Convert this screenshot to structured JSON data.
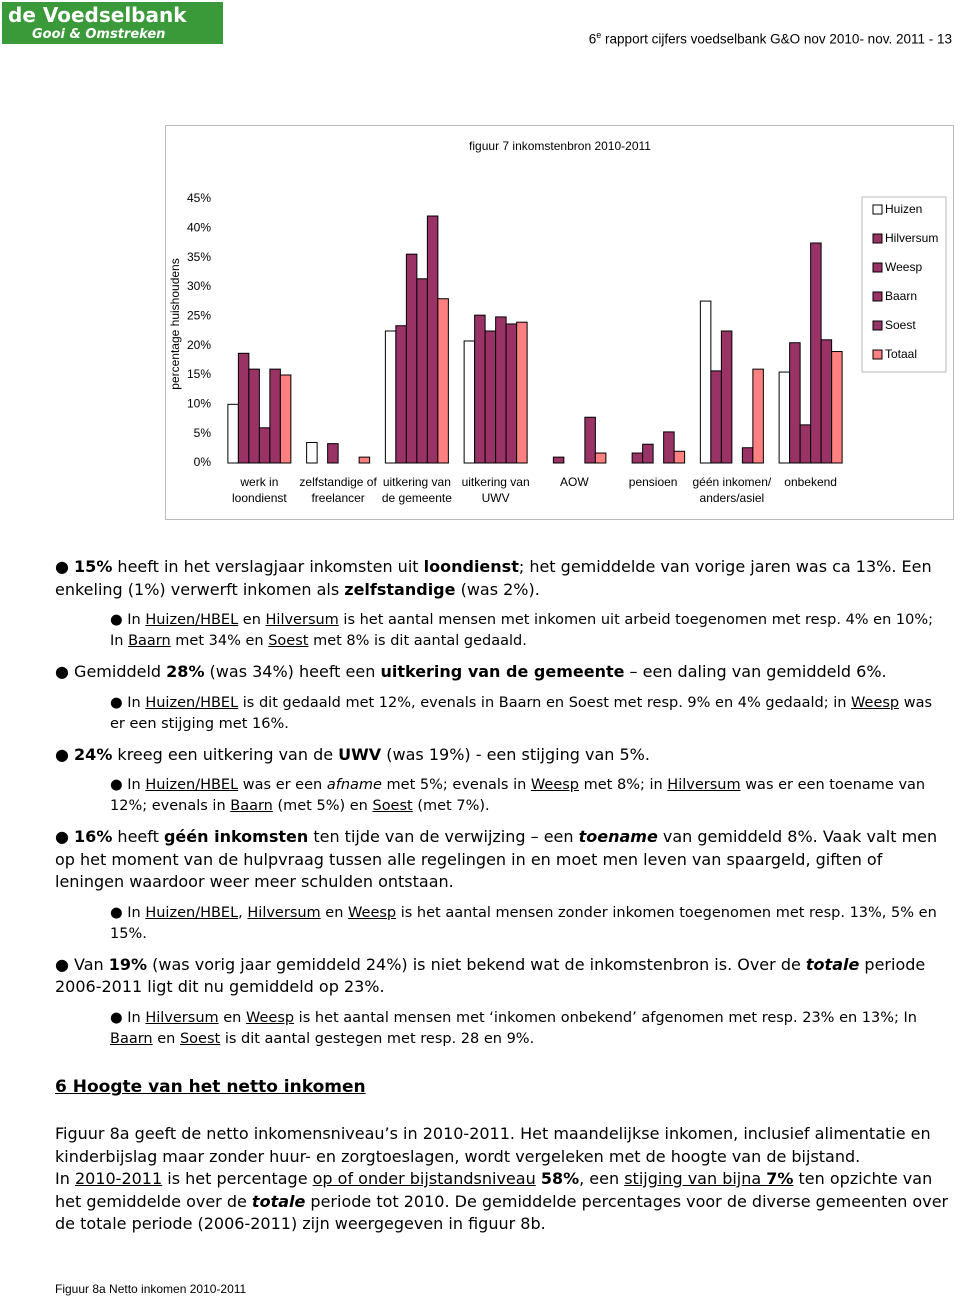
{
  "header": {
    "logo_title": "de Voedselbank",
    "logo_subtitle": "Gooi & Omstreken",
    "runs": [
      {
        "text": "6"
      },
      {
        "text": "e",
        "style": "sup"
      },
      {
        "text": " rapport cijfers voedselbank G&O nov 2010- nov. 2011 - 13"
      }
    ]
  },
  "chart_data": {
    "type": "bar",
    "title": "figuur 7  inkomstenbron 2010-2011",
    "y_label": "percentage huishoudens",
    "categories": [
      "werk in loondienst",
      "zelfstandige of freelancer",
      "uitkering van de gemeente",
      "uitkering van UWV",
      "AOW",
      "pensioen",
      "géén inkomen/ anders/asiel",
      "onbekend"
    ],
    "series": [
      {
        "name": "Huizen",
        "color": "#ffffff",
        "values": [
          10,
          3.5,
          22.5,
          20.8,
          0,
          0,
          27.6,
          15.5
        ]
      },
      {
        "name": "Hilversum",
        "color": "#993366",
        "values": [
          18.7,
          0,
          23.4,
          25.2,
          1,
          1.7,
          15.7,
          20.5
        ]
      },
      {
        "name": "Weesp",
        "color": "#993366",
        "values": [
          16,
          3.3,
          35.6,
          22.5,
          0,
          3.2,
          22.5,
          6.5
        ]
      },
      {
        "name": "Baarn",
        "color": "#993366",
        "values": [
          6,
          0,
          31.4,
          24.9,
          0,
          0,
          0,
          37.5
        ]
      },
      {
        "name": "Soest",
        "color": "#993366",
        "values": [
          16,
          0,
          42.1,
          23.7,
          7.8,
          5.3,
          2.6,
          21
        ]
      },
      {
        "name": "Totaal",
        "color": "#ff8080",
        "values": [
          15,
          1,
          28,
          24,
          1.7,
          2,
          16,
          19
        ]
      }
    ],
    "ylim": [
      0,
      45
    ],
    "yticks": [
      {
        "value": 0,
        "label": "0%"
      },
      {
        "value": 5,
        "label": "5%"
      },
      {
        "value": 10,
        "label": "10%"
      },
      {
        "value": 15,
        "label": "15%"
      },
      {
        "value": 20,
        "label": "20%"
      },
      {
        "value": 25,
        "label": "25%"
      },
      {
        "value": 30,
        "label": "30%"
      },
      {
        "value": 35,
        "label": "35%"
      },
      {
        "value": 40,
        "label": "40%"
      },
      {
        "value": 45,
        "label": "45%"
      }
    ],
    "grid": false,
    "legend": "right"
  },
  "paragraphs": [
    {
      "kind": "main",
      "runs": [
        {
          "text": "● "
        },
        {
          "text": "15%",
          "style": "b"
        },
        {
          "text": " heeft in het verslagjaar inkomsten uit "
        },
        {
          "text": "loondienst",
          "style": "b"
        },
        {
          "text": "; het gemiddelde van vorige jaren was ca 13%. Een enkeling (1%) verwerft inkomen als "
        },
        {
          "text": "zelfstandige",
          "style": "b"
        },
        {
          "text": " (was 2%)."
        }
      ]
    },
    {
      "kind": "sub",
      "runs": [
        {
          "text": "● In "
        },
        {
          "text": "Huizen/HBEL",
          "style": "u"
        },
        {
          "text": " en "
        },
        {
          "text": "Hilversum",
          "style": "u"
        },
        {
          "text": " is het aantal mensen met inkomen uit arbeid toegenomen met resp. 4% en 10%; In "
        },
        {
          "text": "Baarn",
          "style": "u"
        },
        {
          "text": " met 34% en "
        },
        {
          "text": "Soest",
          "style": "u"
        },
        {
          "text": " met 8% is dit aantal gedaald."
        }
      ]
    },
    {
      "kind": "main",
      "runs": [
        {
          "text": "● Gemiddeld "
        },
        {
          "text": "28%",
          "style": "b"
        },
        {
          "text": " (was 34%) heeft een "
        },
        {
          "text": "uitkering van de gemeente",
          "style": "b"
        },
        {
          "text": " – een daling van gemiddeld 6%."
        }
      ]
    },
    {
      "kind": "sub",
      "runs": [
        {
          "text": "● In "
        },
        {
          "text": "Huizen/HBEL",
          "style": "u"
        },
        {
          "text": " is dit gedaald met 12%, evenals in Baarn en Soest met resp. 9% en 4% gedaald; in "
        },
        {
          "text": "Weesp",
          "style": "u"
        },
        {
          "text": " was er een stijging met 16%."
        }
      ]
    },
    {
      "kind": "main",
      "runs": [
        {
          "text": "● "
        },
        {
          "text": "24%",
          "style": "b"
        },
        {
          "text": " kreeg een uitkering van de "
        },
        {
          "text": "UWV",
          "style": "b"
        },
        {
          "text": " (was 19%) - een stijging van 5%."
        }
      ]
    },
    {
      "kind": "sub",
      "runs": [
        {
          "text": "● In "
        },
        {
          "text": "Huizen/HBEL",
          "style": "u"
        },
        {
          "text": " was er een "
        },
        {
          "text": "afname",
          "style": "i"
        },
        {
          "text": " met 5%; evenals in "
        },
        {
          "text": "Weesp",
          "style": "u"
        },
        {
          "text": " met 8%; in "
        },
        {
          "text": "Hilversum",
          "style": "u"
        },
        {
          "text": " was er een toename van 12%; evenals in "
        },
        {
          "text": "Baarn",
          "style": "u"
        },
        {
          "text": " (met 5%) en "
        },
        {
          "text": "Soest",
          "style": "u"
        },
        {
          "text": " (met 7%)."
        }
      ]
    },
    {
      "kind": "main",
      "runs": [
        {
          "text": "● "
        },
        {
          "text": "16%",
          "style": "b"
        },
        {
          "text": " heeft "
        },
        {
          "text": "géén inkomsten",
          "style": "b"
        },
        {
          "text": " ten tijde van de verwijzing – een "
        },
        {
          "text": "toename",
          "style": "bi"
        },
        {
          "text": " van gemiddeld 8%. Vaak valt men op het moment van de hulpvraag tussen alle regelingen in en moet men leven van spaargeld, giften of leningen waardoor weer meer schulden ontstaan."
        }
      ]
    },
    {
      "kind": "sub",
      "runs": [
        {
          "text": "● In "
        },
        {
          "text": "Huizen/HBEL",
          "style": "u"
        },
        {
          "text": ", "
        },
        {
          "text": "Hilversum",
          "style": "u"
        },
        {
          "text": " en "
        },
        {
          "text": "Weesp",
          "style": "u"
        },
        {
          "text": " is het aantal mensen zonder inkomen toegenomen met resp. 13%, 5% en 15%."
        }
      ]
    },
    {
      "kind": "main",
      "runs": [
        {
          "text": "● Van "
        },
        {
          "text": "19%",
          "style": "b"
        },
        {
          "text": " (was vorig jaar gemiddeld 24%) is niet bekend wat de inkomstenbron is. Over de "
        },
        {
          "text": "totale",
          "style": "bi"
        },
        {
          "text": " periode 2006-2011 ligt dit nu gemiddeld op 23%."
        }
      ]
    },
    {
      "kind": "sub",
      "runs": [
        {
          "text": "● In "
        },
        {
          "text": "Hilversum",
          "style": "u"
        },
        {
          "text": " en "
        },
        {
          "text": "Weesp",
          "style": "u"
        },
        {
          "text": " is het aantal mensen met ‘inkomen onbekend’ afgenomen met resp. 23% en 13%; In "
        },
        {
          "text": "Baarn",
          "style": "u"
        },
        {
          "text": " en "
        },
        {
          "text": "Soest",
          "style": "u"
        },
        {
          "text": " is dit aantal gestegen met resp. 28 en 9%."
        }
      ]
    }
  ],
  "heading": "6  Hoogte van het netto inkomen",
  "body": [
    {
      "runs": [
        {
          "text": "Figuur 8a geeft de netto inkomensniveau’s in 2010-2011. Het maandelijkse inkomen, inclusief alimentatie en kinderbijslag maar zonder huur- en zorgtoeslagen, wordt vergeleken met de hoogte van de bijstand."
        }
      ]
    },
    {
      "runs": [
        {
          "text": "In "
        },
        {
          "text": "2010-2011",
          "style": "u"
        },
        {
          "text": " is het percentage "
        },
        {
          "text": "op of onder bijstandsniveau",
          "style": "u"
        },
        {
          "text": " "
        },
        {
          "text": "58%",
          "style": "b"
        },
        {
          "text": ", een "
        },
        {
          "text": "stijging van bijna ",
          "style": "u"
        },
        {
          "text": "7%",
          "style": "bu"
        },
        {
          "text": " ten opzichte van het gemiddelde over de "
        },
        {
          "text": "totale",
          "style": "bi"
        },
        {
          "text": " periode tot 2010. De gemiddelde percentages voor de diverse gemeenten over de totale periode (2006-2011) zijn weergegeven in figuur 8b."
        }
      ]
    }
  ],
  "caption": "Figuur 8a  Netto inkomen 2010-2011"
}
